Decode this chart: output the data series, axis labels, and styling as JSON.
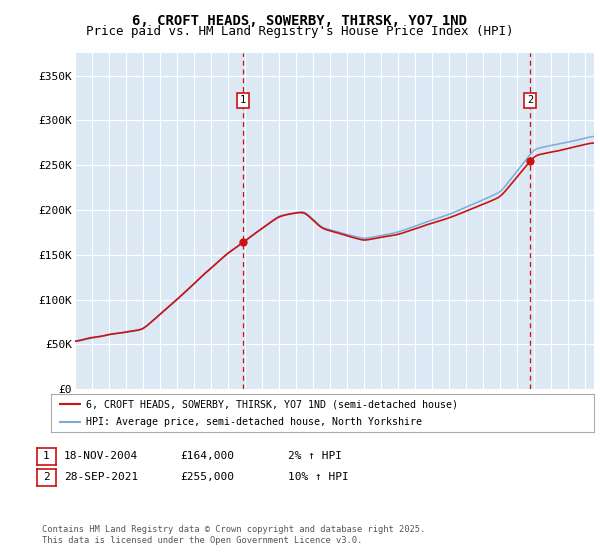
{
  "title": "6, CROFT HEADS, SOWERBY, THIRSK, YO7 1ND",
  "subtitle": "Price paid vs. HM Land Registry's House Price Index (HPI)",
  "ylabel_ticks": [
    "£0",
    "£50K",
    "£100K",
    "£150K",
    "£200K",
    "£250K",
    "£300K",
    "£350K"
  ],
  "ytick_values": [
    0,
    50000,
    100000,
    150000,
    200000,
    250000,
    300000,
    350000
  ],
  "ylim": [
    0,
    375000
  ],
  "xlim_start": 1995,
  "xlim_end": 2025.5,
  "fig_bg_color": "#ffffff",
  "plot_bg_color": "#dce9f5",
  "grid_color": "#ffffff",
  "hpi_color": "#7aacda",
  "price_color": "#cc1111",
  "marker1_x": 2004.88,
  "marker1_y": 164000,
  "marker2_x": 2021.74,
  "marker2_y": 255000,
  "legend_line1": "6, CROFT HEADS, SOWERBY, THIRSK, YO7 1ND (semi-detached house)",
  "legend_line2": "HPI: Average price, semi-detached house, North Yorkshire",
  "annotation1_date": "18-NOV-2004",
  "annotation1_price": "£164,000",
  "annotation1_hpi": "2% ↑ HPI",
  "annotation2_date": "28-SEP-2021",
  "annotation2_price": "£255,000",
  "annotation2_hpi": "10% ↑ HPI",
  "footer": "Contains HM Land Registry data © Crown copyright and database right 2025.\nThis data is licensed under the Open Government Licence v3.0.",
  "title_fontsize": 10,
  "subtitle_fontsize": 9,
  "tick_fontsize": 8
}
